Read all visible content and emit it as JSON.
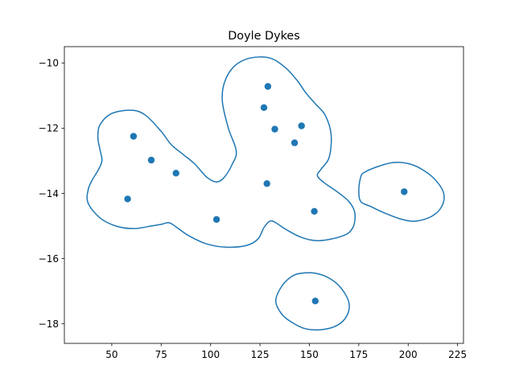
{
  "chart_data": {
    "type": "scatter",
    "title": "Doyle Dykes",
    "xlabel": "",
    "ylabel": "",
    "xlim": [
      26,
      228
    ],
    "ylim": [
      -18.6,
      -9.5
    ],
    "grid": false,
    "xticks": [
      50,
      75,
      100,
      125,
      150,
      175,
      200,
      225
    ],
    "yticks": [
      -10,
      -12,
      -14,
      -16,
      -18
    ],
    "xtick_labels": [
      "50",
      "75",
      "100",
      "125",
      "150",
      "175",
      "200",
      "225"
    ],
    "ytick_labels": [
      "−10",
      "−12",
      "−14",
      "−16",
      "−18"
    ],
    "point_color": "#1f77b4",
    "points": [
      {
        "x": 61,
        "y": -12.25
      },
      {
        "x": 70,
        "y": -12.98
      },
      {
        "x": 82.5,
        "y": -13.38
      },
      {
        "x": 58,
        "y": -14.17
      },
      {
        "x": 103,
        "y": -14.8
      },
      {
        "x": 129,
        "y": -10.72
      },
      {
        "x": 127,
        "y": -11.37
      },
      {
        "x": 132.5,
        "y": -12.03
      },
      {
        "x": 146,
        "y": -11.93
      },
      {
        "x": 142.5,
        "y": -12.45
      },
      {
        "x": 128.5,
        "y": -13.7
      },
      {
        "x": 152.5,
        "y": -14.55
      },
      {
        "x": 198,
        "y": -13.95
      },
      {
        "x": 153,
        "y": -17.3
      }
    ],
    "boundaries": [
      [
        [
          43,
          -12.3
        ],
        [
          44,
          -11.9
        ],
        [
          50,
          -11.55
        ],
        [
          60,
          -11.45
        ],
        [
          67,
          -11.6
        ],
        [
          75,
          -12.1
        ],
        [
          80,
          -12.5
        ],
        [
          86,
          -12.8
        ],
        [
          92,
          -13.1
        ],
        [
          98,
          -13.5
        ],
        [
          103,
          -13.65
        ],
        [
          107,
          -13.5
        ],
        [
          111,
          -13.1
        ],
        [
          113,
          -12.7
        ],
        [
          109,
          -12.0
        ],
        [
          106,
          -11.2
        ],
        [
          107,
          -10.6
        ],
        [
          112,
          -10.1
        ],
        [
          120,
          -9.85
        ],
        [
          130,
          -9.85
        ],
        [
          138,
          -10.15
        ],
        [
          144,
          -10.55
        ],
        [
          148,
          -10.9
        ],
        [
          153,
          -11.25
        ],
        [
          158,
          -11.6
        ],
        [
          161,
          -12.2
        ],
        [
          160,
          -12.9
        ],
        [
          156,
          -13.25
        ],
        [
          154,
          -13.45
        ],
        [
          157,
          -13.65
        ],
        [
          164,
          -13.95
        ],
        [
          170,
          -14.25
        ],
        [
          173,
          -14.6
        ],
        [
          172,
          -15.05
        ],
        [
          167,
          -15.3
        ],
        [
          155,
          -15.45
        ],
        [
          146,
          -15.35
        ],
        [
          138,
          -15.1
        ],
        [
          133,
          -14.9
        ],
        [
          130,
          -14.85
        ],
        [
          127,
          -15.05
        ],
        [
          124,
          -15.4
        ],
        [
          118,
          -15.6
        ],
        [
          108,
          -15.65
        ],
        [
          98,
          -15.55
        ],
        [
          89,
          -15.3
        ],
        [
          83,
          -15.05
        ],
        [
          79,
          -14.9
        ],
        [
          75,
          -14.95
        ],
        [
          70,
          -15.0
        ],
        [
          61,
          -15.08
        ],
        [
          52,
          -15.0
        ],
        [
          44,
          -14.75
        ],
        [
          38,
          -14.3
        ],
        [
          38,
          -13.9
        ],
        [
          40,
          -13.6
        ],
        [
          43,
          -13.3
        ],
        [
          45,
          -13.0
        ],
        [
          44,
          -12.65
        ]
      ],
      [
        [
          176,
          -13.5
        ],
        [
          178,
          -13.35
        ],
        [
          186,
          -13.15
        ],
        [
          193,
          -13.05
        ],
        [
          201,
          -13.1
        ],
        [
          208,
          -13.3
        ],
        [
          214,
          -13.6
        ],
        [
          218,
          -14.0
        ],
        [
          217,
          -14.4
        ],
        [
          212,
          -14.7
        ],
        [
          204,
          -14.85
        ],
        [
          197,
          -14.8
        ],
        [
          188,
          -14.6
        ],
        [
          181,
          -14.4
        ],
        [
          176,
          -14.25
        ],
        [
          175,
          -13.9
        ]
      ],
      [
        [
          133,
          -17.3
        ],
        [
          136,
          -16.85
        ],
        [
          141,
          -16.55
        ],
        [
          146,
          -16.45
        ],
        [
          153,
          -16.45
        ],
        [
          160,
          -16.6
        ],
        [
          166,
          -16.9
        ],
        [
          170,
          -17.35
        ],
        [
          169,
          -17.75
        ],
        [
          164,
          -18.05
        ],
        [
          156,
          -18.18
        ],
        [
          148,
          -18.15
        ],
        [
          141,
          -17.95
        ],
        [
          136,
          -17.7
        ]
      ]
    ]
  }
}
